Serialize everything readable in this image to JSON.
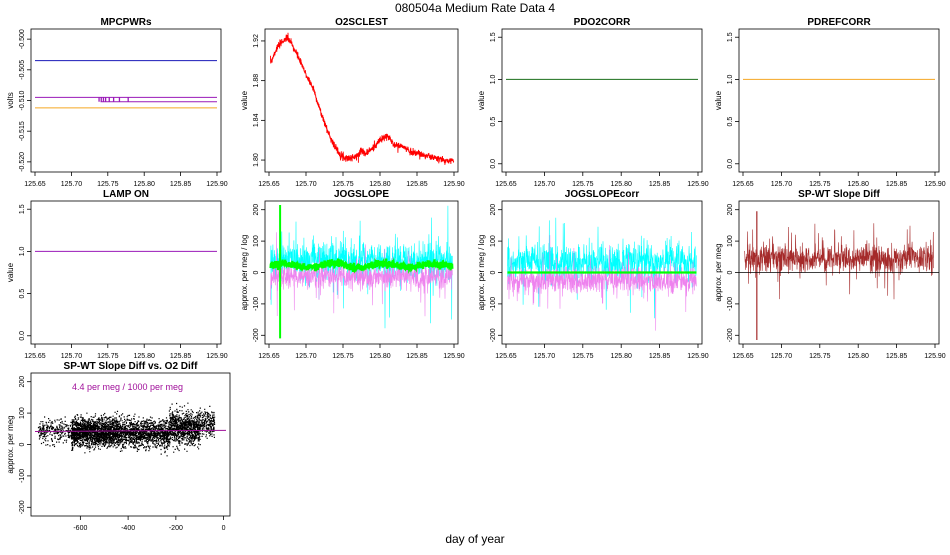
{
  "title": "080504a   Medium Rate Data 4",
  "xlabel": "day of year",
  "colors": {
    "blue": "#1a1ab8",
    "purple": "#9a1ab8",
    "orange": "#f5a623",
    "red": "#ff0000",
    "darkgreen": "#1a6e1a",
    "cyan": "#00ffff",
    "violet": "#ee82ee",
    "green": "#00ff00",
    "brown": "#a52a2a",
    "magenta": "#a0109a",
    "black": "#000000"
  },
  "chart_data": [
    {
      "id": "mpcpwrs",
      "type": "line",
      "title": "MPCPWRs",
      "ylabel": "volts",
      "xlim": [
        125.65,
        125.9
      ],
      "ylim": [
        -0.521,
        -0.499
      ],
      "xticks": [
        "125.65",
        "125.70",
        "125.75",
        "125.80",
        "125.85",
        "125.90"
      ],
      "yticks": [
        "-0.500",
        "-0.505",
        "-0.510",
        "-0.515",
        "-0.520"
      ],
      "series": [
        {
          "name": "blue",
          "x": [
            125.65,
            125.9
          ],
          "y": [
            -0.5035,
            -0.5035
          ]
        },
        {
          "name": "purple",
          "x": [
            125.65,
            125.9
          ],
          "y": [
            -0.5095,
            -0.5095
          ]
        },
        {
          "name": "purple-low",
          "x": [
            125.74,
            125.9
          ],
          "y": [
            -0.5102,
            -0.5102
          ]
        },
        {
          "name": "orange",
          "x": [
            125.65,
            125.9
          ],
          "y": [
            -0.5112,
            -0.5112
          ]
        }
      ],
      "spikes_x": [
        125.738,
        125.741,
        125.744,
        125.747,
        125.752,
        125.758,
        125.766,
        125.778
      ]
    },
    {
      "id": "o2sclest",
      "type": "line",
      "title": "O2SCLEST",
      "ylabel": "value",
      "xlim": [
        125.65,
        125.9
      ],
      "ylim": [
        1.792,
        1.928
      ],
      "xticks": [
        "125.65",
        "125.70",
        "125.75",
        "125.80",
        "125.85",
        "125.90"
      ],
      "yticks": [
        "1.80",
        "1.84",
        "1.88",
        "1.92"
      ],
      "series": [
        {
          "name": "O2SCLEST",
          "x": [
            125.652,
            125.66,
            125.67,
            125.675,
            125.68,
            125.69,
            125.7,
            125.71,
            125.72,
            125.73,
            125.74,
            125.75,
            125.76,
            125.77,
            125.775,
            125.78,
            125.79,
            125.8,
            125.81,
            125.82,
            125.83,
            125.84,
            125.85,
            125.86,
            125.87,
            125.88,
            125.89,
            125.9
          ],
          "y": [
            1.898,
            1.912,
            1.921,
            1.923,
            1.918,
            1.903,
            1.886,
            1.872,
            1.848,
            1.828,
            1.812,
            1.803,
            1.802,
            1.804,
            1.811,
            1.806,
            1.812,
            1.82,
            1.824,
            1.815,
            1.814,
            1.809,
            1.807,
            1.805,
            1.803,
            1.801,
            1.799,
            1.8
          ]
        }
      ]
    },
    {
      "id": "pdo2corr",
      "type": "line",
      "title": "PDO2CORR",
      "ylabel": "value",
      "xlim": [
        125.65,
        125.9
      ],
      "ylim": [
        -0.05,
        1.55
      ],
      "xticks": [
        "125.65",
        "125.70",
        "125.75",
        "125.80",
        "125.85",
        "125.90"
      ],
      "yticks": [
        "0.0",
        "0.5",
        "1.0",
        "1.5"
      ],
      "series": [
        {
          "name": "PDO2CORR",
          "x": [
            125.65,
            125.9
          ],
          "y": [
            1.0,
            1.0
          ]
        }
      ]
    },
    {
      "id": "pdrefcorr",
      "type": "line",
      "title": "PDREFCORR",
      "ylabel": "value",
      "xlim": [
        125.65,
        125.9
      ],
      "ylim": [
        -0.05,
        1.55
      ],
      "xticks": [
        "125.65",
        "125.70",
        "125.75",
        "125.80",
        "125.85",
        "125.90"
      ],
      "yticks": [
        "0.0",
        "0.5",
        "1.0",
        "1.5"
      ],
      "series": [
        {
          "name": "PDREFCORR",
          "x": [
            125.65,
            125.9
          ],
          "y": [
            1.0,
            1.0
          ]
        }
      ]
    },
    {
      "id": "lampon",
      "type": "line",
      "title": "LAMP ON",
      "ylabel": "value",
      "xlim": [
        125.65,
        125.9
      ],
      "ylim": [
        -0.05,
        1.55
      ],
      "xticks": [
        "125.65",
        "125.70",
        "125.75",
        "125.80",
        "125.85",
        "125.90"
      ],
      "yticks": [
        "0.0",
        "0.5",
        "1.0",
        "1.5"
      ],
      "series": [
        {
          "name": "LAMP ON",
          "x": [
            125.65,
            125.9
          ],
          "y": [
            1.0,
            1.0
          ]
        }
      ]
    },
    {
      "id": "jogslope",
      "type": "line",
      "title": "JOGSLOPE",
      "ylabel": "approx. per meg / log",
      "xlim": [
        125.65,
        125.9
      ],
      "ylim": [
        -215,
        215
      ],
      "xticks": [
        "125.65",
        "125.70",
        "125.75",
        "125.80",
        "125.85",
        "125.90"
      ],
      "yticks": [
        "-200",
        "-100",
        "0",
        "100",
        "200"
      ],
      "series": [
        {
          "name": "cyan",
          "center": 38,
          "spread": 55
        },
        {
          "name": "violet",
          "center": -12,
          "spread": 40
        },
        {
          "name": "green",
          "center": 22,
          "spread": 12
        }
      ],
      "green_spike": {
        "x": 125.665,
        "ymin": -210,
        "ymax": 215
      }
    },
    {
      "id": "jogslopecorr",
      "type": "line",
      "title": "JOGSLOPEcorr",
      "ylabel": "approx. per meg / log",
      "xlim": [
        125.65,
        125.9
      ],
      "ylim": [
        -215,
        215
      ],
      "xticks": [
        "125.65",
        "125.70",
        "125.75",
        "125.80",
        "125.85",
        "125.90"
      ],
      "yticks": [
        "-200",
        "-100",
        "0",
        "100",
        "200"
      ],
      "series": [
        {
          "name": "cyan",
          "center": 35,
          "spread": 55
        },
        {
          "name": "violet",
          "center": -25,
          "spread": 40
        },
        {
          "name": "green",
          "center": 0,
          "spread": 0
        }
      ]
    },
    {
      "id": "spwtdiff",
      "type": "line",
      "title": "SP-WT Slope Diff",
      "ylabel": "approx. per meg",
      "xlim": [
        125.65,
        125.9
      ],
      "ylim": [
        -215,
        215
      ],
      "xticks": [
        "125.65",
        "125.70",
        "125.75",
        "125.80",
        "125.85",
        "125.90"
      ],
      "yticks": [
        "-200",
        "-100",
        "0",
        "100",
        "200"
      ],
      "series": [
        {
          "name": "brown",
          "center": 45,
          "spread": 45
        }
      ],
      "brown_spike": {
        "x": 125.668,
        "ymin": -215,
        "ymax": 195
      }
    },
    {
      "id": "scatter",
      "type": "scatter",
      "title": "SP-WT Slope Diff vs. O2 Diff",
      "ylabel": "approx. per meg",
      "xlim": [
        -790,
        10
      ],
      "ylim": [
        -215,
        215
      ],
      "xticks": [
        "-600",
        "-400",
        "-200",
        "0"
      ],
      "xtick_values": [
        -600,
        -400,
        -200,
        0
      ],
      "yticks": [
        "-200",
        "-100",
        "0",
        "100",
        "200"
      ],
      "annotation": "4.4 per meg / 1000 per meg",
      "fit": {
        "slope": 0.0044,
        "intercept": 45
      },
      "clusters": [
        {
          "xmin": -780,
          "xmax": -640,
          "ymean": 45,
          "ysd": 18,
          "n": 250
        },
        {
          "xmin": -640,
          "xmax": -440,
          "ymean": 40,
          "ysd": 22,
          "n": 1800
        },
        {
          "xmin": -440,
          "xmax": -230,
          "ymean": 38,
          "ysd": 22,
          "n": 1200
        },
        {
          "xmin": -230,
          "xmax": -100,
          "ymean": 55,
          "ysd": 25,
          "n": 900
        },
        {
          "xmin": -100,
          "xmax": -40,
          "ymean": 70,
          "ysd": 20,
          "n": 200
        }
      ]
    }
  ]
}
